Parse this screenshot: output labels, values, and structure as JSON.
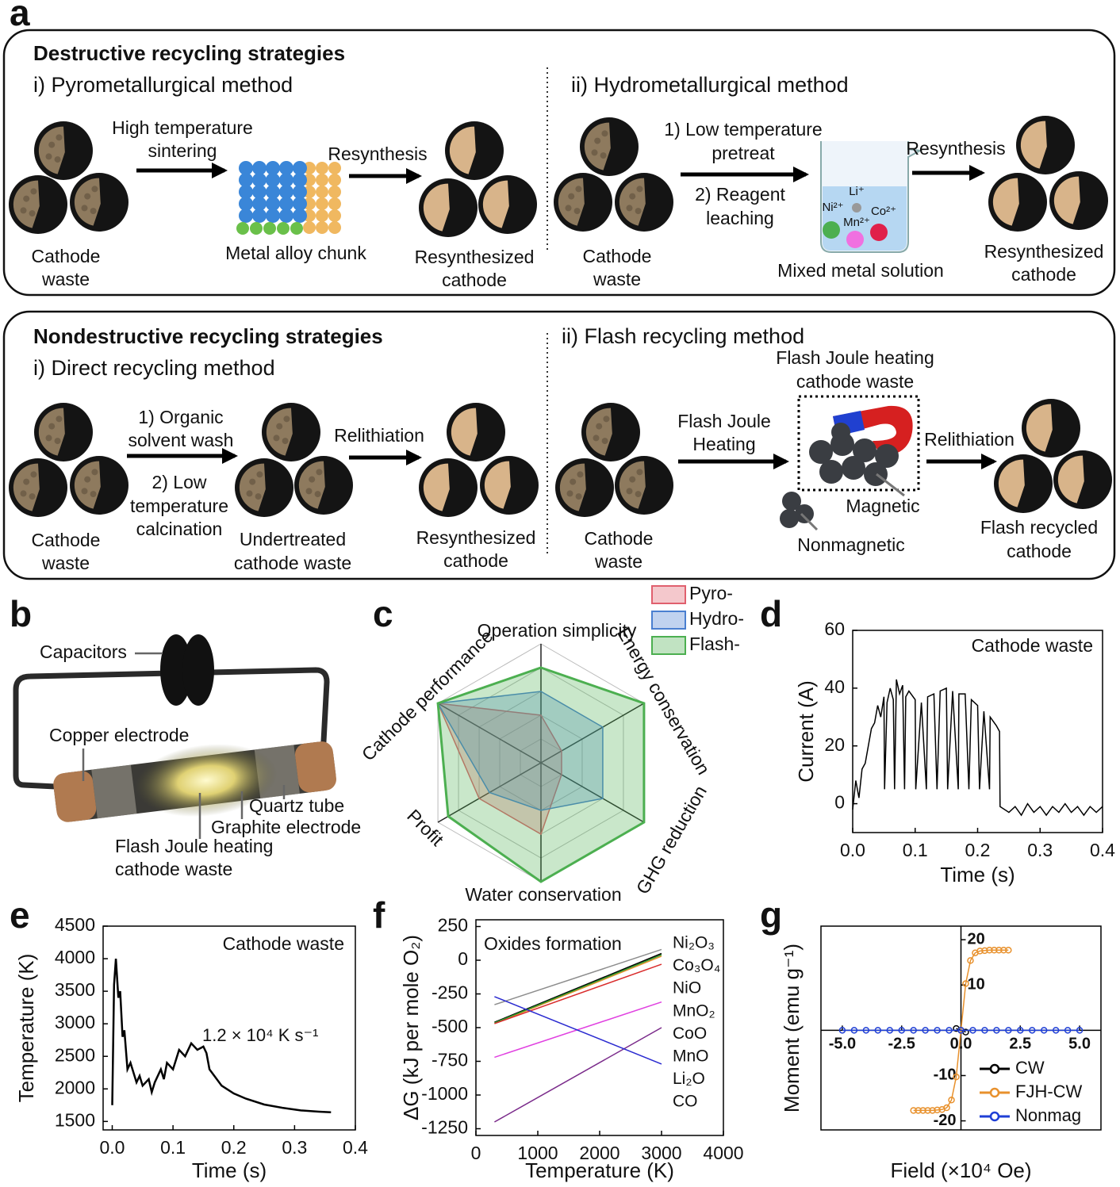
{
  "panel_labels": [
    "a",
    "b",
    "c",
    "d",
    "e",
    "f",
    "g"
  ],
  "panel_a": {
    "destructive": {
      "title": "Destructive recycling strategies",
      "pyro": {
        "title": "i) Pyrometallurgical method",
        "step1": [
          "High temperature",
          "sintering"
        ],
        "step2": "Resynthesis",
        "input": [
          "Cathode",
          "waste"
        ],
        "intermediate": "Metal alloy chunk",
        "output": [
          "Resynthesized",
          "cathode"
        ]
      },
      "hydro": {
        "title": "ii) Hydrometallurgical method",
        "step1": [
          "1) Low temperature",
          "pretreat"
        ],
        "step1b": [
          "2) Reagent",
          "leaching"
        ],
        "step2": "Resynthesis",
        "input": [
          "Cathode",
          "waste"
        ],
        "intermediate": "Mixed metal solution",
        "ions": [
          "Li⁺",
          "Ni²⁺",
          "Mn²⁺",
          "Co²⁺"
        ],
        "output": [
          "Resynthesized",
          "cathode"
        ]
      }
    },
    "nondestructive": {
      "title": "Nondestructive recycling strategies",
      "direct": {
        "title": "i) Direct recycling method",
        "step1": [
          "1) Organic",
          "solvent wash"
        ],
        "step1b": [
          "2) Low",
          "temperature",
          "calcination"
        ],
        "step2": "Relithiation",
        "input": [
          "Cathode",
          "waste"
        ],
        "intermediate": [
          "Undertreated",
          "cathode waste"
        ],
        "output": [
          "Resynthesized",
          "cathode"
        ]
      },
      "flash": {
        "title": "ii) Flash recycling method",
        "step1": [
          "Flash Joule",
          "Heating"
        ],
        "step2": "Relithiation",
        "input": [
          "Cathode",
          "waste"
        ],
        "intermediate": [
          "Flash Joule heating",
          "cathode waste"
        ],
        "magnetic": "Magnetic",
        "nonmagnetic": "Nonmagnetic",
        "output": [
          "Flash recycled",
          "cathode"
        ]
      }
    }
  },
  "panel_b": {
    "capacitors": "Capacitors",
    "copper": "Copper electrode",
    "quartz": "Quartz tube",
    "graphite": "Graphite electrode",
    "sample": [
      "Flash Joule heating",
      "cathode waste"
    ]
  },
  "chart_data": [
    {
      "type": "radar",
      "categories": [
        "Operation simplicity",
        "Energy conservation",
        "GHG reduction",
        "Water conservation",
        "Profit",
        "Cathode performance"
      ],
      "rlim": [
        0,
        5
      ],
      "rticks": [
        1,
        2,
        3,
        4,
        5
      ],
      "grid": true,
      "legend": "top-right",
      "series": [
        {
          "name": "Pyro-",
          "color": "#e0606e",
          "values": [
            2,
            1,
            1,
            3,
            3,
            5
          ]
        },
        {
          "name": "Hydro-",
          "color": "#4a7fd0",
          "values": [
            3,
            3,
            3,
            2,
            2.5,
            5
          ]
        },
        {
          "name": "Flash-",
          "color": "#4caf50",
          "values": [
            4,
            5,
            5,
            5,
            4.5,
            5
          ]
        }
      ]
    },
    {
      "type": "line",
      "annotation": "Cathode waste",
      "x_label": "Time (s)",
      "y_label": "Current (A)",
      "color": "#000000",
      "xlim": [
        0,
        0.4
      ],
      "xticks": [
        {
          "value": 0,
          "label": "0.0"
        },
        0.1,
        0.2,
        0.3,
        0.4
      ],
      "ylim": [
        -10,
        60
      ],
      "yticks": [
        0,
        20,
        40,
        60
      ],
      "x": [
        0,
        0.005,
        0.01,
        0.015,
        0.02,
        0.025,
        0.03,
        0.035,
        0.04,
        0.045,
        0.05,
        0.051,
        0.055,
        0.06,
        0.065,
        0.067,
        0.07,
        0.075,
        0.08,
        0.083,
        0.085,
        0.09,
        0.1,
        0.101,
        0.11,
        0.118,
        0.12,
        0.13,
        0.135,
        0.14,
        0.15,
        0.152,
        0.16,
        0.169,
        0.17,
        0.18,
        0.186,
        0.19,
        0.2,
        0.203,
        0.21,
        0.219,
        0.22,
        0.23,
        0.235,
        0.236,
        0.25,
        0.26,
        0.27,
        0.28,
        0.29,
        0.3,
        0.31,
        0.32,
        0.33,
        0.34,
        0.35,
        0.36,
        0.37,
        0.38,
        0.39,
        0.4
      ],
      "values": [
        -2,
        8,
        2,
        12,
        14,
        20,
        26,
        28,
        34,
        30,
        37,
        5,
        35,
        40,
        36,
        5,
        43,
        38,
        41,
        5,
        37,
        39,
        36,
        5,
        35,
        5,
        37,
        38,
        5,
        39,
        40,
        5,
        39,
        5,
        38,
        38,
        5,
        36,
        34,
        5,
        32,
        5,
        30,
        27,
        25,
        -1,
        -3,
        -1,
        -4,
        0,
        -3,
        -1,
        -4,
        -1,
        -3,
        0,
        -3,
        -1,
        -4,
        -1,
        -3,
        -1
      ]
    },
    {
      "type": "line",
      "annotation": "Cathode waste",
      "rate_label": "1.2 × 10⁴ K s⁻¹",
      "x_label": "Time (s)",
      "y_label": "Temperature (K)",
      "color": "#000000",
      "xlim": [
        -0.015,
        0.4
      ],
      "xticks": [
        {
          "value": 0,
          "label": "0.0"
        },
        0.1,
        0.2,
        0.3,
        0.4
      ],
      "ylim": [
        1370,
        4500
      ],
      "yticks": [
        1500,
        2000,
        2500,
        3000,
        3500,
        4000,
        4500
      ],
      "x": [
        0,
        0.003,
        0.006,
        0.01,
        0.013,
        0.017,
        0.02,
        0.025,
        0.03,
        0.04,
        0.045,
        0.05,
        0.06,
        0.065,
        0.07,
        0.08,
        0.085,
        0.09,
        0.1,
        0.11,
        0.12,
        0.13,
        0.14,
        0.15,
        0.155,
        0.16,
        0.18,
        0.2,
        0.22,
        0.25,
        0.28,
        0.31,
        0.34,
        0.36
      ],
      "values": [
        1750,
        3600,
        4000,
        3400,
        3500,
        2800,
        2900,
        2300,
        2400,
        2100,
        2200,
        2050,
        2150,
        1950,
        2100,
        2300,
        2150,
        2400,
        2300,
        2600,
        2500,
        2700,
        2600,
        2650,
        2550,
        2300,
        2050,
        1930,
        1850,
        1760,
        1710,
        1670,
        1650,
        1640
      ]
    },
    {
      "type": "line",
      "annotation": "Oxides formation",
      "x_label": "Temperature (K)",
      "y_label": "ΔG (kJ per mole O₂)",
      "xlim": [
        0,
        4000
      ],
      "xticks": [
        0,
        1000,
        2000,
        3000,
        4000
      ],
      "ylim": [
        -1300,
        300
      ],
      "yticks": [
        250,
        0,
        -250,
        -500,
        -750,
        -1000,
        -1250
      ],
      "x": [
        300,
        3000
      ],
      "series": [
        {
          "name": "Ni₂O₃",
          "color": "#8c8c8c",
          "values": [
            -330,
            80
          ]
        },
        {
          "name": "Co₃O₄",
          "color": "#000000",
          "values": [
            -460,
            50
          ]
        },
        {
          "name": "NiO",
          "color": "#e8912d",
          "values": [
            -470,
            30
          ]
        },
        {
          "name": "MnO₂",
          "color": "#2e9a2e",
          "values": [
            -465,
            40
          ]
        },
        {
          "name": "CoO",
          "color": "#d92b2b",
          "values": [
            -470,
            -30
          ]
        },
        {
          "name": "MnO",
          "color": "#e040e0",
          "values": [
            -720,
            -310
          ]
        },
        {
          "name": "Li₂O",
          "color": "#7a2a8a",
          "values": [
            -1200,
            -500
          ]
        },
        {
          "name": "CO",
          "color": "#2a2ad0",
          "values": [
            -270,
            -770
          ]
        }
      ]
    },
    {
      "type": "line",
      "x_label": "Field (×10⁴ Oe)",
      "y_label": "Moment (emu g⁻¹)",
      "legend": "bottom-right",
      "xlim": [
        -5.9,
        5.9
      ],
      "xticks": [
        {
          "value": -5,
          "label": "-5.0"
        },
        {
          "value": -2.5,
          "label": "-2.5"
        },
        {
          "value": 0,
          "label": "0.0"
        },
        2.5,
        {
          "value": 5,
          "label": "5.0"
        }
      ],
      "ylim": [
        -22,
        23
      ],
      "yticks": [
        -20,
        -10,
        10,
        20
      ],
      "series": [
        {
          "name": "CW",
          "color": "#000000",
          "x": [
            -0.2,
            0,
            0.2
          ],
          "values": [
            0.4,
            0,
            -0.4
          ]
        },
        {
          "name": "FJH-CW",
          "color": "#e8912d",
          "x": [
            -2,
            -1.8,
            -1.6,
            -1.4,
            -1.2,
            -1,
            -0.8,
            -0.6,
            -0.4,
            -0.2,
            0,
            0.2,
            0.4,
            0.6,
            0.8,
            1,
            1.2,
            1.4,
            1.6,
            1.8,
            2
          ],
          "values": [
            -17.7,
            -17.7,
            -17.7,
            -17.7,
            -17.7,
            -17.6,
            -17.5,
            -17.1,
            -15.4,
            -10.3,
            0,
            10.3,
            15.4,
            17.1,
            17.5,
            17.6,
            17.7,
            17.7,
            17.7,
            17.7,
            17.7
          ]
        },
        {
          "name": "Nonmag",
          "color": "#1f3fd6",
          "x": [
            -5,
            -4.5,
            -4,
            -3.5,
            -3,
            -2.5,
            -2,
            -1.5,
            -1,
            -0.5,
            0,
            0.5,
            1,
            1.5,
            2,
            2.5,
            3,
            3.5,
            4,
            4.5,
            5
          ],
          "values": [
            0,
            0,
            0,
            0,
            0,
            0,
            0,
            0,
            0,
            0,
            0,
            0,
            0,
            0,
            0,
            0,
            0,
            0,
            0,
            0,
            0
          ]
        }
      ]
    }
  ]
}
